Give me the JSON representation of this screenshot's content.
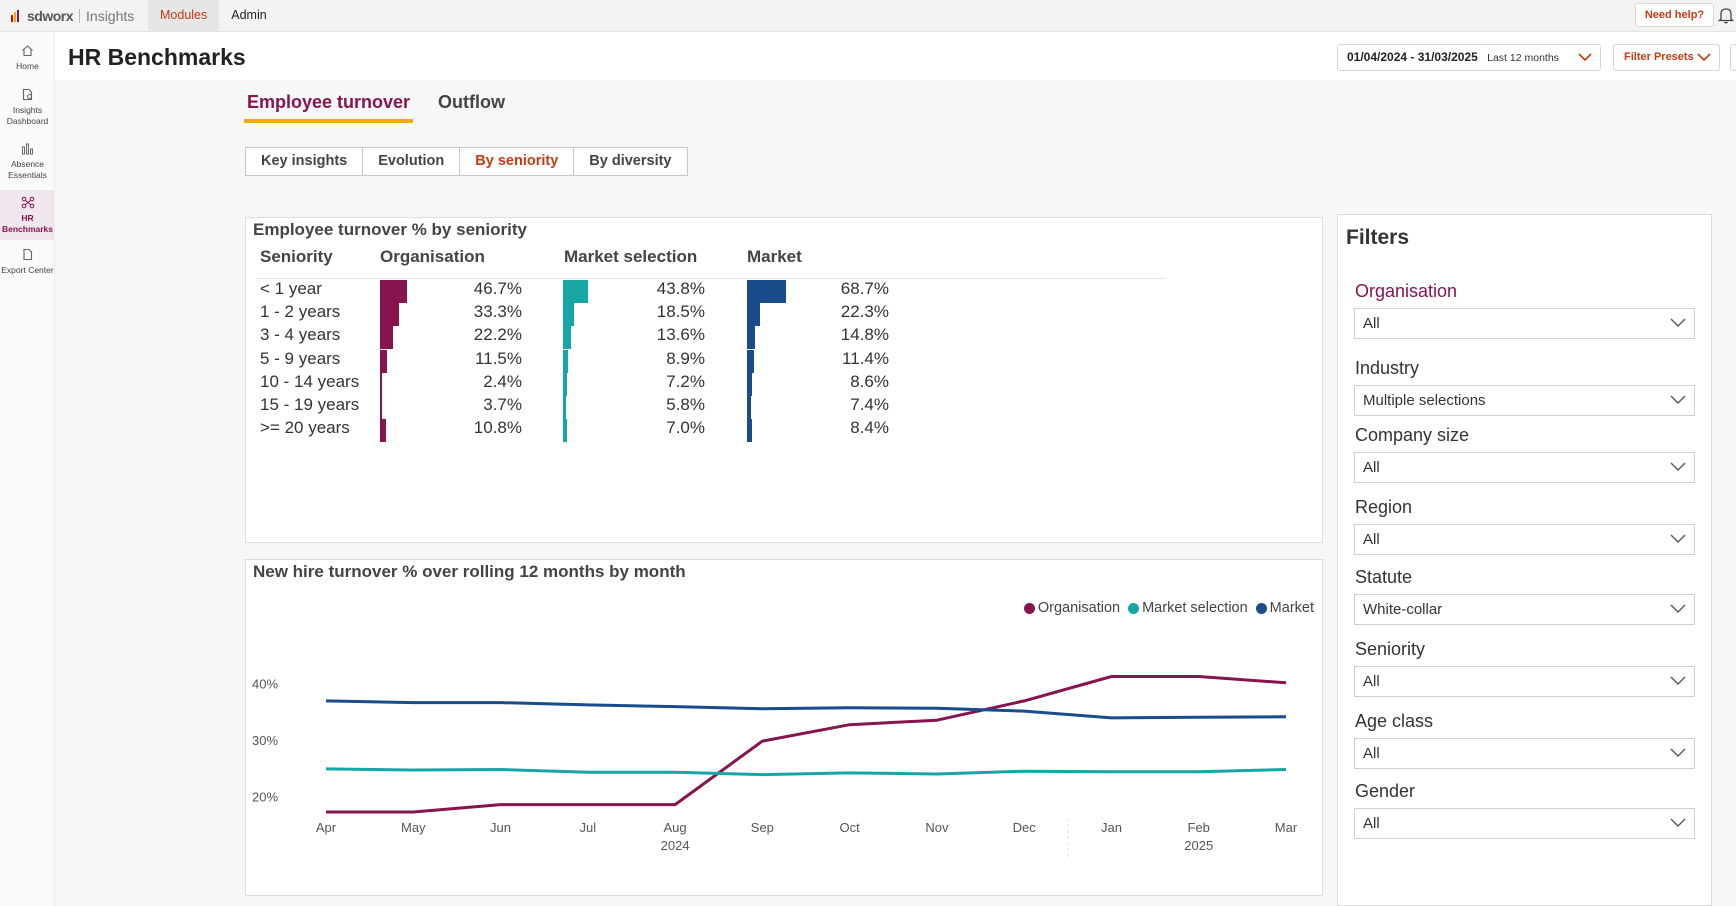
{
  "app": {
    "brand": "sdworx",
    "product": "Insights",
    "nav": [
      {
        "label": "Modules",
        "active": true
      },
      {
        "label": "Admin",
        "active": false
      }
    ],
    "help_label": "Need help?"
  },
  "sidebar": {
    "items": [
      {
        "label": "Home",
        "icon": "home-icon"
      },
      {
        "label": "Insights Dashboard",
        "icon": "dashboard-icon"
      },
      {
        "label": "Absence Essentials",
        "icon": "bar-chart-icon"
      },
      {
        "label": "HR Benchmarks",
        "icon": "benchmark-icon",
        "active": true
      },
      {
        "label": "Export Center",
        "icon": "document-icon"
      }
    ]
  },
  "header": {
    "title": "HR Benchmarks",
    "date_range": "01/04/2024 - 31/03/2025",
    "date_label": "Last 12 months",
    "filter_presets": "Filter Presets"
  },
  "tabs": [
    {
      "label": "Employee turnover",
      "active": true
    },
    {
      "label": "Outflow",
      "active": false
    }
  ],
  "subtabs": [
    {
      "label": "Key insights",
      "active": false
    },
    {
      "label": "Evolution",
      "active": false
    },
    {
      "label": "By seniority",
      "active": true
    },
    {
      "label": "By diversity",
      "active": false
    }
  ],
  "colors": {
    "organisation": "#87134f",
    "market_selection": "#17a6a6",
    "market": "#1a4b8c",
    "accent": "#c63b12",
    "tab_underline": "#f2a900"
  },
  "table": {
    "title": "Employee turnover % by seniority",
    "headers": [
      "Seniority",
      "Organisation",
      "Market selection",
      "Market"
    ],
    "rows": [
      {
        "label": "< 1 year",
        "org": "46.7%",
        "sel": "43.8%",
        "mkt": "68.7%"
      },
      {
        "label": "1 - 2 years",
        "org": "33.3%",
        "sel": "18.5%",
        "mkt": "22.3%"
      },
      {
        "label": "3 - 4 years",
        "org": "22.2%",
        "sel": "13.6%",
        "mkt": "14.8%"
      },
      {
        "label": "5 - 9 years",
        "org": "11.5%",
        "sel": "8.9%",
        "mkt": "11.4%"
      },
      {
        "label": "10 - 14 years",
        "org": "2.4%",
        "sel": "7.2%",
        "mkt": "8.6%"
      },
      {
        "label": "15 - 19 years",
        "org": "3.7%",
        "sel": "5.8%",
        "mkt": "7.4%"
      },
      {
        "label": ">= 20 years",
        "org": "10.8%",
        "sel": "7.0%",
        "mkt": "8.4%"
      }
    ]
  },
  "chart_data": {
    "type": "line",
    "title": "New hire turnover % over rolling 12 months by month",
    "x": [
      "Apr",
      "May",
      "Jun",
      "Jul",
      "Aug",
      "Sep",
      "Oct",
      "Nov",
      "Dec",
      "Jan",
      "Feb",
      "Mar"
    ],
    "x_years": [
      {
        "label": "2024"
      },
      {
        "label": "2025"
      }
    ],
    "y_ticks": [
      "20%",
      "30%",
      "40%"
    ],
    "ylim": [
      15,
      45
    ],
    "legend_position": "top-right",
    "series": [
      {
        "name": "Organisation",
        "values": [
          17.3,
          17.3,
          18.6,
          18.6,
          18.6,
          29.8,
          32.7,
          33.5,
          36.9,
          41.2,
          41.2,
          40.1
        ]
      },
      {
        "name": "Market selection",
        "values": [
          24.9,
          24.7,
          24.8,
          24.3,
          24.3,
          23.9,
          24.2,
          24.0,
          24.5,
          24.4,
          24.4,
          24.8
        ]
      },
      {
        "name": "Market",
        "values": [
          36.9,
          36.6,
          36.6,
          36.2,
          35.9,
          35.5,
          35.7,
          35.6,
          35.1,
          33.9,
          34.0,
          34.1
        ]
      }
    ]
  },
  "filters": {
    "title": "Filters",
    "items": [
      {
        "label": "Organisation",
        "value": "All",
        "accent": true
      },
      {
        "label": "Industry",
        "value": "Multiple selections"
      },
      {
        "label": "Company size",
        "value": "All"
      },
      {
        "label": "Region",
        "value": "All"
      },
      {
        "label": "Statute",
        "value": "White-collar"
      },
      {
        "label": "Seniority",
        "value": "All"
      },
      {
        "label": "Age class",
        "value": "All"
      },
      {
        "label": "Gender",
        "value": "All"
      }
    ]
  }
}
